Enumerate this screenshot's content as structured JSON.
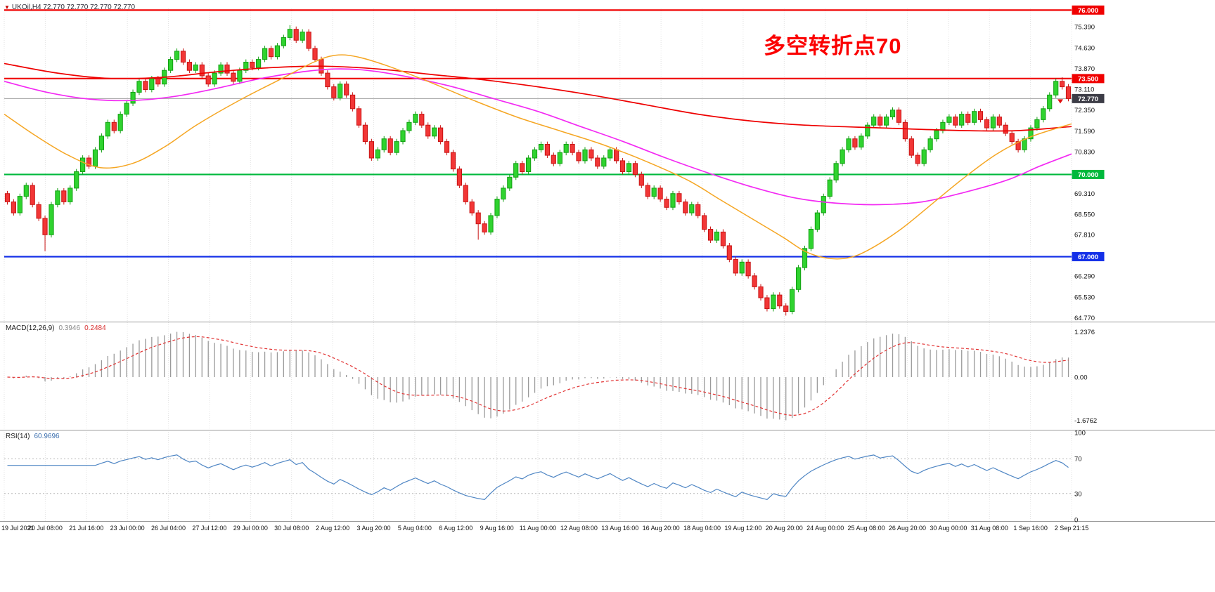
{
  "window": {
    "title": "UKOil,H4 72.770 72.770 72.770 72.770"
  },
  "annotation": {
    "text": "多空转折点70",
    "color": "#fb0000"
  },
  "current_price": {
    "value": 72.77,
    "label": "72.770",
    "box_color": "#3c3c46",
    "line_color": "#a0a0a0"
  },
  "hlines": [
    {
      "value": 76.0,
      "label": "76.000",
      "color": "#f00000"
    },
    {
      "value": 73.5,
      "label": "73.500",
      "color": "#f00000"
    },
    {
      "value": 70.0,
      "label": "70.000",
      "color": "#00b93c"
    },
    {
      "value": 67.0,
      "label": "67.000",
      "color": "#1430e8"
    }
  ],
  "price_axis": {
    "labels": [
      {
        "text": "76.000",
        "style": "red"
      },
      {
        "text": "75.390",
        "style": "plain"
      },
      {
        "text": "74.630",
        "style": "plain"
      },
      {
        "text": "73.870",
        "style": "plain"
      },
      {
        "text": "73.500",
        "style": "red"
      },
      {
        "text": "73.110",
        "style": "plain"
      },
      {
        "text": "72.770",
        "style": "current"
      },
      {
        "text": "72.350",
        "style": "plain"
      },
      {
        "text": "71.590",
        "style": "plain"
      },
      {
        "text": "70.830",
        "style": "plain"
      },
      {
        "text": "70.000",
        "style": "green"
      },
      {
        "text": "69.310",
        "style": "plain"
      },
      {
        "text": "68.550",
        "style": "plain"
      },
      {
        "text": "67.810",
        "style": "plain"
      },
      {
        "text": "67.000",
        "style": "blue"
      },
      {
        "text": "66.290",
        "style": "plain"
      },
      {
        "text": "65.530",
        "style": "plain"
      },
      {
        "text": "64.770",
        "style": "plain"
      }
    ]
  },
  "chart_data": {
    "type": "candlestick",
    "symbol": "UKOil",
    "timeframe": "H4",
    "ylim": [
      64.68,
      76.06
    ],
    "first_open": 69.3,
    "closes": [
      69.0,
      68.6,
      69.2,
      69.6,
      68.9,
      68.4,
      67.8,
      68.9,
      69.4,
      69.0,
      69.5,
      70.1,
      70.6,
      70.3,
      70.9,
      71.4,
      71.9,
      71.6,
      72.2,
      72.6,
      73.0,
      73.4,
      73.1,
      73.5,
      73.3,
      73.8,
      74.2,
      74.5,
      74.1,
      73.8,
      74.0,
      73.6,
      73.3,
      73.7,
      74.0,
      73.7,
      73.4,
      73.8,
      74.1,
      73.9,
      74.2,
      74.6,
      74.3,
      74.7,
      75.0,
      75.3,
      74.9,
      75.2,
      74.6,
      74.2,
      73.7,
      73.2,
      72.8,
      73.3,
      72.9,
      72.4,
      71.8,
      71.2,
      70.6,
      70.9,
      71.3,
      70.8,
      71.2,
      71.6,
      71.9,
      72.2,
      71.8,
      71.4,
      71.7,
      71.2,
      70.8,
      70.2,
      69.6,
      69.0,
      68.6,
      68.2,
      67.9,
      68.5,
      69.1,
      69.5,
      69.9,
      70.4,
      70.1,
      70.6,
      70.9,
      71.1,
      70.7,
      70.4,
      70.8,
      71.1,
      70.8,
      70.5,
      70.9,
      70.6,
      70.3,
      70.6,
      70.9,
      70.5,
      70.1,
      70.4,
      70.0,
      69.6,
      69.2,
      69.5,
      69.1,
      68.8,
      69.3,
      69.0,
      68.6,
      68.9,
      68.5,
      68.0,
      67.6,
      67.9,
      67.4,
      66.9,
      66.4,
      66.8,
      66.3,
      65.9,
      65.5,
      65.1,
      65.6,
      65.2,
      65.0,
      65.8,
      66.6,
      67.3,
      68.0,
      68.6,
      69.2,
      69.8,
      70.4,
      70.9,
      71.3,
      71.0,
      71.4,
      71.8,
      72.1,
      71.8,
      72.1,
      72.35,
      71.9,
      71.3,
      70.7,
      70.4,
      70.9,
      71.3,
      71.6,
      71.9,
      72.1,
      71.8,
      72.2,
      71.9,
      72.3,
      72.0,
      71.7,
      72.1,
      71.8,
      71.5,
      71.2,
      70.9,
      71.3,
      71.7,
      72.0,
      72.4,
      72.9,
      73.4,
      73.2,
      72.77
    ],
    "wick_pad": 0.1,
    "wick_overrides": [
      {
        "i": 6,
        "low": 67.2
      },
      {
        "i": 45,
        "high": 75.45
      },
      {
        "i": 75,
        "low": 67.62
      },
      {
        "i": 124,
        "low": 64.85
      },
      {
        "i": 168,
        "high": 73.55
      }
    ],
    "colors": {
      "up": "#2fd32f",
      "up_stroke": "#13a013",
      "down": "#f23636",
      "down_stroke": "#c81414"
    },
    "ma_lines": [
      {
        "name": "ma-slow-red",
        "color": "#ee0000",
        "width": 1.7,
        "points": [
          [
            0,
            74.05
          ],
          [
            0.05,
            73.7
          ],
          [
            0.1,
            73.5
          ],
          [
            0.15,
            73.55
          ],
          [
            0.2,
            73.75
          ],
          [
            0.25,
            73.9
          ],
          [
            0.3,
            73.95
          ],
          [
            0.35,
            73.85
          ],
          [
            0.4,
            73.65
          ],
          [
            0.45,
            73.45
          ],
          [
            0.5,
            73.2
          ],
          [
            0.55,
            72.9
          ],
          [
            0.6,
            72.55
          ],
          [
            0.65,
            72.2
          ],
          [
            0.7,
            71.95
          ],
          [
            0.75,
            71.8
          ],
          [
            0.82,
            71.7
          ],
          [
            0.9,
            71.6
          ],
          [
            0.95,
            71.6
          ],
          [
            1,
            71.75
          ]
        ]
      },
      {
        "name": "ma-mid-magenta",
        "color": "#f32af3",
        "width": 1.7,
        "points": [
          [
            0,
            73.4
          ],
          [
            0.04,
            73.0
          ],
          [
            0.08,
            72.75
          ],
          [
            0.12,
            72.7
          ],
          [
            0.16,
            72.85
          ],
          [
            0.2,
            73.15
          ],
          [
            0.24,
            73.5
          ],
          [
            0.28,
            73.75
          ],
          [
            0.31,
            73.85
          ],
          [
            0.34,
            73.8
          ],
          [
            0.38,
            73.55
          ],
          [
            0.42,
            73.2
          ],
          [
            0.46,
            72.75
          ],
          [
            0.5,
            72.3
          ],
          [
            0.54,
            71.75
          ],
          [
            0.58,
            71.2
          ],
          [
            0.62,
            70.6
          ],
          [
            0.66,
            70.05
          ],
          [
            0.7,
            69.55
          ],
          [
            0.74,
            69.15
          ],
          [
            0.78,
            68.95
          ],
          [
            0.82,
            68.9
          ],
          [
            0.86,
            69.0
          ],
          [
            0.9,
            69.35
          ],
          [
            0.94,
            69.8
          ],
          [
            0.97,
            70.3
          ],
          [
            1,
            70.75
          ]
        ]
      },
      {
        "name": "ma-fast-orange",
        "color": "#f5a623",
        "width": 1.5,
        "points": [
          [
            0,
            72.2
          ],
          [
            0.03,
            71.4
          ],
          [
            0.06,
            70.7
          ],
          [
            0.09,
            70.25
          ],
          [
            0.12,
            70.4
          ],
          [
            0.15,
            71.0
          ],
          [
            0.18,
            71.8
          ],
          [
            0.22,
            72.7
          ],
          [
            0.26,
            73.5
          ],
          [
            0.29,
            74.1
          ],
          [
            0.31,
            74.35
          ],
          [
            0.33,
            74.3
          ],
          [
            0.36,
            73.95
          ],
          [
            0.4,
            73.35
          ],
          [
            0.44,
            72.7
          ],
          [
            0.48,
            72.1
          ],
          [
            0.52,
            71.6
          ],
          [
            0.56,
            71.1
          ],
          [
            0.6,
            70.5
          ],
          [
            0.64,
            69.8
          ],
          [
            0.67,
            69.1
          ],
          [
            0.7,
            68.4
          ],
          [
            0.73,
            67.7
          ],
          [
            0.75,
            67.2
          ],
          [
            0.77,
            66.95
          ],
          [
            0.79,
            66.95
          ],
          [
            0.81,
            67.25
          ],
          [
            0.84,
            68.0
          ],
          [
            0.87,
            68.95
          ],
          [
            0.9,
            69.9
          ],
          [
            0.93,
            70.75
          ],
          [
            0.96,
            71.35
          ],
          [
            1,
            71.85
          ]
        ]
      }
    ],
    "indicators": [
      {
        "name": "MACD",
        "label": "MACD(12,26,9)",
        "value1": "0.3946",
        "value2": "0.2484",
        "params": [
          12,
          26,
          9
        ],
        "scale_labels": [
          "1.2376",
          "0.00",
          "-1.6762"
        ],
        "histogram_color": "#9a9a9a",
        "signal_color": "#e23333"
      },
      {
        "name": "RSI",
        "label": "RSI(14)",
        "value1": "60.9696",
        "params": [
          14
        ],
        "scale_labels": [
          "100",
          "70",
          "30",
          "0"
        ],
        "levels": [
          70,
          30
        ],
        "line_color": "#4f86c4"
      }
    ],
    "time_axis": [
      "19 Jul 2021",
      "20 Jul 08:00",
      "21 Jul 16:00",
      "23 Jul 00:00",
      "26 Jul 04:00",
      "27 Jul 12:00",
      "29 Jul 00:00",
      "30 Jul 08:00",
      "2 Aug 12:00",
      "3 Aug 20:00",
      "5 Aug 04:00",
      "6 Aug 12:00",
      "9 Aug 16:00",
      "11 Aug 00:00",
      "12 Aug 08:00",
      "13 Aug 16:00",
      "16 Aug 20:00",
      "18 Aug 04:00",
      "19 Aug 12:00",
      "20 Aug 20:00",
      "24 Aug 00:00",
      "25 Aug 08:00",
      "26 Aug 20:00",
      "30 Aug 00:00",
      "31 Aug 08:00",
      "1 Sep 16:00",
      "2 Sep 21:15"
    ]
  }
}
